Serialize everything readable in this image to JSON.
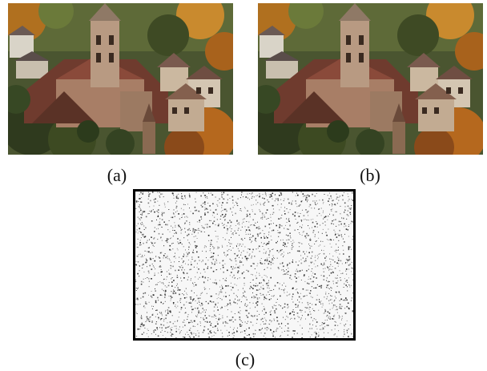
{
  "figure": {
    "panels": [
      {
        "id": "a",
        "caption": "(a)",
        "content": "village-photo"
      },
      {
        "id": "b",
        "caption": "(b)",
        "content": "village-photo"
      },
      {
        "id": "c",
        "caption": "(c)",
        "content": "noise-pattern"
      }
    ],
    "colors": {
      "roof": "#8a4a3a",
      "stone": "#b89a82",
      "foliage_dark": "#2f3a1e",
      "foliage_autumn": "#c27a28",
      "noise_bg": "#f7f7f7",
      "noise_dot": "#222222"
    }
  }
}
